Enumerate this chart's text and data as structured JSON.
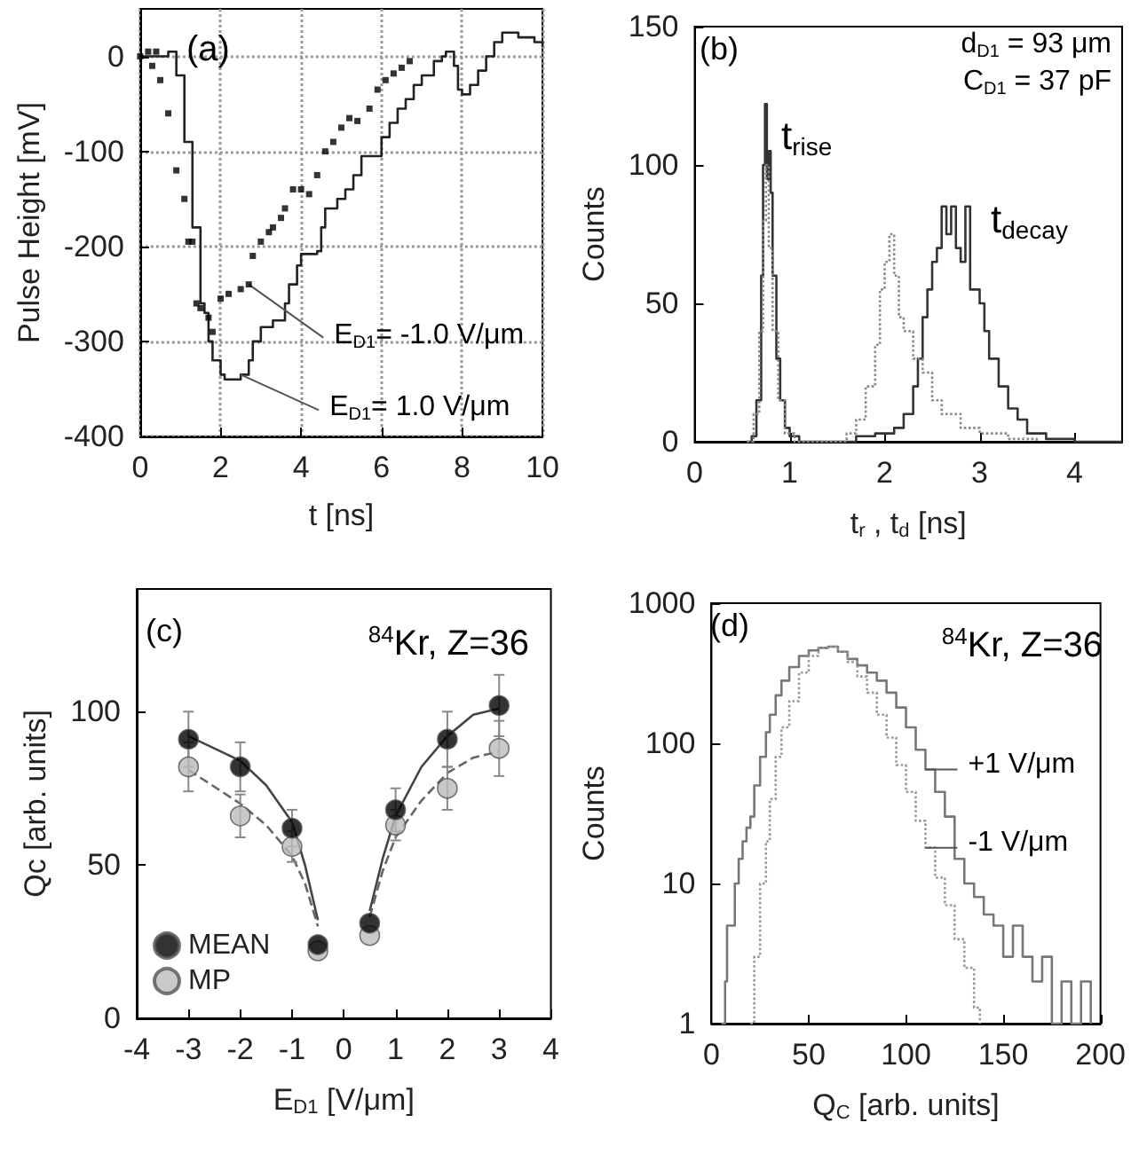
{
  "chart_data": [
    {
      "type": "line",
      "xlabel": "t [ns]",
      "ylabel": "Pulse Height [mV]",
      "xlim": [
        0,
        10
      ],
      "ylim": [
        -400,
        50
      ],
      "xticks": [
        0,
        2,
        4,
        6,
        8,
        10
      ],
      "yticks": [
        -400,
        -300,
        -200,
        -100,
        0
      ],
      "grid": true,
      "annotations": [
        "(a)",
        {
          "text": "E$_{D1}$= -1.0 V/μm",
          "x": 2.7,
          "y": -240
        },
        {
          "text": "E$_{D1}$= 1.0 V/μm",
          "x": 2.5,
          "y": -335
        }
      ],
      "series": [
        {
          "type": "step",
          "color": "#222222",
          "line_style": "solid",
          "marker": "none",
          "x": [
            0,
            0.7,
            0.9,
            1.1,
            1.3,
            1.5,
            1.6,
            1.7,
            1.8,
            2.0,
            2.1,
            2.5,
            2.7,
            2.8,
            3.0,
            3.3,
            3.6,
            3.7,
            3.9,
            4.0,
            4.4,
            4.5,
            4.6,
            4.9,
            5.1,
            5.3,
            5.5,
            5.9,
            6.0,
            6.2,
            6.4,
            6.6,
            6.8,
            7.0,
            7.3,
            7.5,
            7.6,
            7.8,
            7.9,
            8.0,
            8.2,
            8.4,
            8.6,
            8.8,
            9.0,
            9.4,
            9.8,
            10
          ],
          "values": [
            0,
            5,
            -20,
            -90,
            -180,
            -260,
            -270,
            -300,
            -320,
            -335,
            -340,
            -335,
            -320,
            -300,
            -285,
            -278,
            -260,
            -240,
            -220,
            -208,
            -205,
            -180,
            -160,
            -150,
            -140,
            -125,
            -105,
            -105,
            -85,
            -70,
            -55,
            -45,
            -30,
            -20,
            -5,
            0,
            5,
            -10,
            -35,
            -40,
            -30,
            -15,
            0,
            15,
            25,
            20,
            15,
            10
          ]
        },
        {
          "type": "scatter",
          "color": "#000000",
          "marker": "square",
          "x": [
            0,
            0.2,
            0.3,
            0.4,
            0.5,
            0.7,
            0.9,
            1.1,
            1.2,
            1.3,
            1.4,
            1.5,
            1.7,
            1.8,
            2.0,
            2.2,
            2.5,
            2.7,
            2.8,
            3.0,
            3.2,
            3.3,
            3.5,
            3.6,
            3.8,
            4.0,
            4.2,
            4.4,
            4.6,
            4.8,
            5.0,
            5.2,
            5.4,
            5.7,
            5.9,
            6.1,
            6.3,
            6.5,
            6.7
          ],
          "values": [
            0,
            5,
            -10,
            5,
            -25,
            -60,
            -120,
            -150,
            -195,
            -195,
            -260,
            -265,
            -275,
            -290,
            -255,
            -250,
            -245,
            -240,
            -210,
            -195,
            -185,
            -180,
            -170,
            -160,
            -140,
            -140,
            -145,
            -125,
            -100,
            -90,
            -75,
            -65,
            -68,
            -55,
            -35,
            -25,
            -18,
            -12,
            -5
          ]
        }
      ]
    },
    {
      "type": "step",
      "xlabel": "t$_{r}$ , t$_{d}$ [ns]",
      "ylabel": "Counts",
      "xlim": [
        0,
        4.5
      ],
      "ylim": [
        0,
        150
      ],
      "xticks": [
        0,
        1,
        2,
        3,
        4
      ],
      "yticks": [
        0,
        50,
        100,
        150
      ],
      "annotations": [
        "(b)",
        "d$_{D1}$ = 93 μm",
        "C$_{D1}$ = 37 pF",
        "t$_{rise}$",
        "t$_{decay}$"
      ],
      "series": [
        {
          "color": "#333333",
          "line_style": "solid",
          "x": [
            0.55,
            0.6,
            0.65,
            0.7,
            0.72,
            0.74,
            0.76,
            0.78,
            0.8,
            0.82,
            0.86,
            0.9,
            0.95,
            1.0,
            1.1,
            1.5,
            1.7,
            1.9,
            2.1,
            2.2,
            2.3,
            2.35,
            2.4,
            2.45,
            2.5,
            2.55,
            2.6,
            2.65,
            2.7,
            2.75,
            2.8,
            2.85,
            2.9,
            3.0,
            3.05,
            3.1,
            3.2,
            3.3,
            3.4,
            3.5,
            3.7,
            4.0,
            4.5
          ],
          "values": [
            0,
            2,
            15,
            60,
            100,
            122,
            95,
            105,
            90,
            60,
            30,
            15,
            5,
            2,
            0,
            0,
            2,
            3,
            5,
            10,
            20,
            30,
            45,
            55,
            65,
            70,
            85,
            75,
            85,
            70,
            65,
            85,
            55,
            50,
            40,
            30,
            20,
            12,
            8,
            3,
            1,
            0,
            0
          ]
        },
        {
          "color": "#888888",
          "line_style": "dotted",
          "x": [
            0.55,
            0.62,
            0.68,
            0.72,
            0.75,
            0.78,
            0.82,
            0.88,
            0.95,
            1.05,
            1.6,
            1.7,
            1.8,
            1.9,
            1.95,
            2.0,
            2.05,
            2.1,
            2.15,
            2.2,
            2.3,
            2.4,
            2.5,
            2.6,
            2.8,
            3.0,
            3.3,
            3.6
          ],
          "values": [
            0,
            10,
            40,
            80,
            100,
            70,
            40,
            15,
            3,
            0,
            3,
            8,
            20,
            35,
            55,
            65,
            75,
            60,
            45,
            40,
            30,
            25,
            15,
            10,
            5,
            3,
            1,
            0
          ]
        }
      ]
    },
    {
      "type": "scatter",
      "xlabel": "E$_{D1}$ [V/μm]",
      "ylabel": "Qc [arb. units]",
      "xlim": [
        -4,
        4
      ],
      "ylim": [
        0,
        140
      ],
      "xticks": [
        -4,
        -3,
        -2,
        -1,
        0,
        1,
        2,
        3,
        4
      ],
      "yticks": [
        0,
        50,
        100
      ],
      "legend": "bottom left",
      "annotations": [
        "(c)",
        "$^{84}$Kr, Z=36"
      ],
      "series": [
        {
          "type": "line",
          "color": "#444444",
          "line_style": "solid",
          "marker": "none",
          "x": [
            -3,
            -2,
            -1.5,
            -1,
            -0.75,
            -0.5,
            0,
            0.5,
            0.75,
            1,
            1.5,
            2,
            2.5,
            3
          ],
          "values": [
            92,
            84,
            76,
            64,
            50,
            32,
            null,
            35,
            52,
            66,
            82,
            92,
            99,
            101
          ]
        },
        {
          "type": "line",
          "color": "#666666",
          "line_style": "dashed",
          "marker": "none",
          "x": [
            -3,
            -2,
            -1.5,
            -1,
            -0.75,
            -0.5,
            0,
            0.5,
            0.75,
            1,
            1.5,
            2,
            2.5,
            3
          ],
          "values": [
            81,
            70,
            63,
            53,
            44,
            30,
            null,
            33,
            48,
            59,
            71,
            80,
            85,
            87
          ]
        },
        {
          "name": "MEAN",
          "color": "#000000",
          "marker": "circle",
          "x": [
            -3,
            -2,
            -1,
            -0.5,
            0.5,
            1,
            2,
            3
          ],
          "values": [
            91,
            82,
            62,
            24,
            31,
            68,
            91,
            102
          ],
          "errors": [
            9,
            8,
            6,
            null,
            null,
            7,
            9,
            10
          ]
        },
        {
          "name": "MP",
          "color": "#bbbbbb",
          "marker": "circle",
          "x": [
            -3,
            -2,
            -1,
            -0.5,
            0.5,
            1,
            2,
            3
          ],
          "values": [
            82,
            66,
            56,
            22,
            27,
            63,
            75,
            88
          ],
          "errors": [
            8,
            7,
            5,
            null,
            null,
            5,
            7,
            9
          ]
        }
      ]
    },
    {
      "type": "step",
      "xlabel": "Q$_{C}$ [arb. units]",
      "ylabel": "Counts",
      "log": "y",
      "xlim": [
        0,
        200
      ],
      "ylim": [
        1,
        1000
      ],
      "xticks": [
        0,
        50,
        100,
        150,
        200
      ],
      "yticks": [
        1,
        10,
        100,
        1000
      ],
      "annotations": [
        "(d)",
        "$^{84}$Kr, Z=36",
        {
          "text": "+1 V/μm",
          "x": 110,
          "y": 65
        },
        {
          "text": "-1 V/μm",
          "x": 110,
          "y": 18
        }
      ],
      "series": [
        {
          "color": "#777777",
          "line_style": "solid",
          "x": [
            5,
            7,
            8,
            10,
            12,
            14,
            16,
            18,
            20,
            22,
            25,
            28,
            30,
            33,
            36,
            40,
            45,
            50,
            55,
            60,
            65,
            70,
            75,
            80,
            85,
            90,
            95,
            100,
            105,
            110,
            115,
            120,
            125,
            130,
            135,
            140,
            145,
            150,
            155,
            160,
            165,
            170,
            175,
            180,
            185,
            190,
            195
          ],
          "values": [
            1,
            2,
            5,
            5,
            10,
            15,
            20,
            25,
            30,
            50,
            80,
            120,
            160,
            220,
            280,
            350,
            420,
            460,
            480,
            490,
            450,
            400,
            360,
            320,
            280,
            230,
            180,
            130,
            90,
            65,
            45,
            30,
            15,
            10,
            8,
            6,
            5,
            3,
            5,
            3,
            2,
            3,
            1,
            2,
            1,
            2,
            1
          ]
        },
        {
          "color": "#999999",
          "line_style": "dotted",
          "x": [
            20,
            22,
            25,
            28,
            30,
            33,
            36,
            40,
            45,
            50,
            55,
            60,
            65,
            70,
            75,
            80,
            85,
            90,
            95,
            100,
            105,
            110,
            115,
            120,
            125,
            130,
            135,
            138
          ],
          "values": [
            1,
            3,
            10,
            20,
            40,
            80,
            130,
            200,
            320,
            420,
            480,
            490,
            450,
            380,
            300,
            230,
            160,
            110,
            70,
            45,
            28,
            18,
            11,
            7,
            4,
            2.5,
            1.3,
            1
          ]
        }
      ]
    }
  ]
}
